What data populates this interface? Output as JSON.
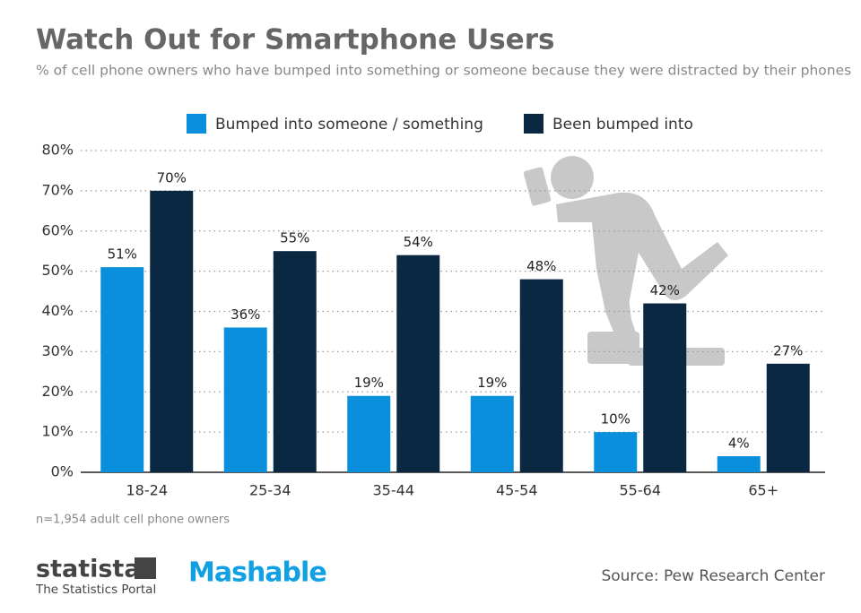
{
  "chart_data": {
    "type": "bar",
    "title": "Watch Out for Smartphone Users",
    "subtitle": "% of cell phone owners who have bumped into something or someone because they were distracted by their phones",
    "categories": [
      "18-24",
      "25-34",
      "35-44",
      "45-54",
      "55-64",
      "65+"
    ],
    "series": [
      {
        "name": "Bumped into someone / something",
        "color": "#0a8fdc",
        "values": [
          51,
          36,
          19,
          19,
          10,
          4
        ],
        "value_labels": [
          "51%",
          "36%",
          "19%",
          "19%",
          "10%",
          "4%"
        ]
      },
      {
        "name": "Been bumped into",
        "color": "#0b2842",
        "values": [
          70,
          55,
          54,
          48,
          42,
          27
        ],
        "value_labels": [
          "70%",
          "55%",
          "54%",
          "48%",
          "42%",
          "27%"
        ]
      }
    ],
    "ylim": [
      0,
      80
    ],
    "yticks": [
      {
        "value": 0,
        "label": "0%"
      },
      {
        "value": 10,
        "label": "10%"
      },
      {
        "value": 20,
        "label": "20%"
      },
      {
        "value": 30,
        "label": "30%"
      },
      {
        "value": 40,
        "label": "40%"
      },
      {
        "value": 50,
        "label": "50%"
      },
      {
        "value": 60,
        "label": "60%"
      },
      {
        "value": 70,
        "label": "70%"
      },
      {
        "value": 80,
        "label": "80%"
      }
    ],
    "grid": true,
    "legend": "top",
    "note": "n=1,954 adult cell phone owners",
    "source": "Source: Pew Research Center",
    "branding": [
      "statista",
      "The Statistics Portal",
      "Mashable"
    ]
  }
}
